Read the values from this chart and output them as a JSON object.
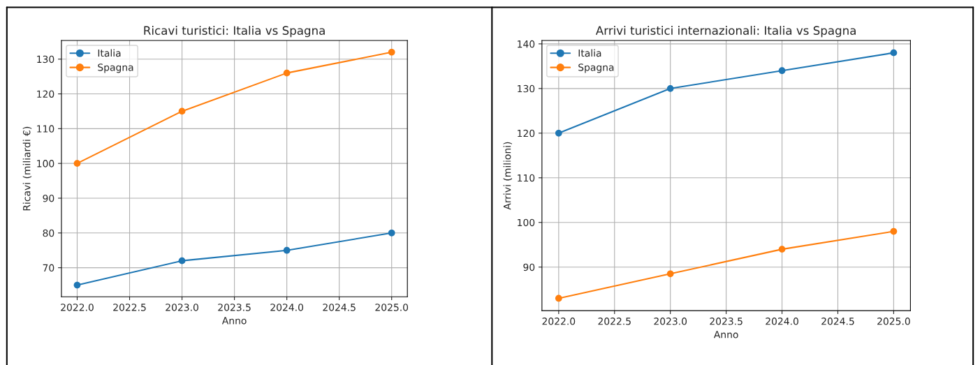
{
  "chart_data": [
    {
      "type": "line",
      "title": "Ricavi turistici: Italia vs Spagna",
      "xlabel": "Anno",
      "ylabel": "Ricavi (miliardi €)",
      "x": [
        2022,
        2023,
        2024,
        2025
      ],
      "series": [
        {
          "name": "Italia",
          "color": "#1f77b4",
          "values": [
            65,
            72,
            75,
            80
          ]
        },
        {
          "name": "Spagna",
          "color": "#ff7f0e",
          "values": [
            100,
            115,
            126,
            132
          ]
        }
      ],
      "xlim": [
        2021.85,
        2025.15
      ],
      "xticks": [
        {
          "value": 2022,
          "label": "2022.0"
        },
        2022.5,
        {
          "value": 2023,
          "label": "2023.0"
        },
        2023.5,
        {
          "value": 2024,
          "label": "2024.0"
        },
        2024.5,
        {
          "value": 2025,
          "label": "2025.0"
        }
      ],
      "ylim": [
        61.65,
        135.35
      ],
      "yticks": [
        70,
        80,
        90,
        100,
        110,
        120,
        130
      ],
      "grid": true,
      "legend": "top left",
      "marker": "circle",
      "line_style": "solid"
    },
    {
      "type": "line",
      "title": "Arrivi turistici internazionali: Italia vs Spagna",
      "xlabel": "Anno",
      "ylabel": "Arrivi (milioni)",
      "x": [
        2022,
        2023,
        2024,
        2025
      ],
      "series": [
        {
          "name": "Italia",
          "color": "#1f77b4",
          "values": [
            120,
            130,
            134,
            138
          ]
        },
        {
          "name": "Spagna",
          "color": "#ff7f0e",
          "values": [
            83,
            88.5,
            94,
            98
          ]
        }
      ],
      "xlim": [
        2021.85,
        2025.15
      ],
      "xticks": [
        {
          "value": 2022,
          "label": "2022.0"
        },
        2022.5,
        {
          "value": 2023,
          "label": "2023.0"
        },
        2023.5,
        {
          "value": 2024,
          "label": "2024.0"
        },
        2024.5,
        {
          "value": 2025,
          "label": "2025.0"
        }
      ],
      "ylim": [
        80.25,
        140.75
      ],
      "yticks": [
        90,
        100,
        110,
        120,
        130,
        140
      ],
      "grid": true,
      "legend": "top left",
      "marker": "circle",
      "line_style": "solid"
    }
  ]
}
